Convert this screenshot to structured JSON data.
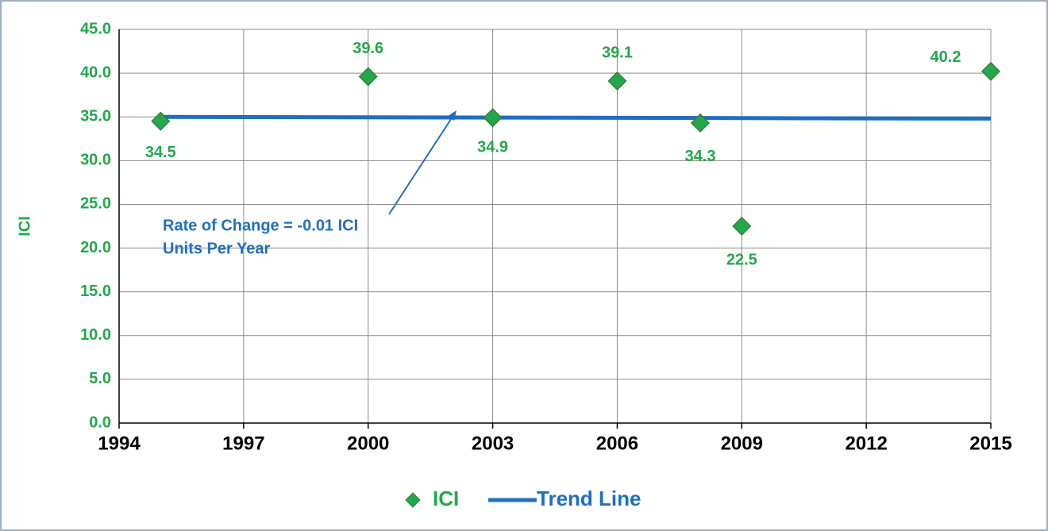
{
  "chart_data": {
    "type": "scatter",
    "y_label": "ICI",
    "annotation": [
      "Rate of Change = -0.01 ICI",
      "Units Per Year"
    ],
    "annotation_color": "#1f6fbf",
    "series": [
      {
        "name": "ICI",
        "color": "#22a84a",
        "marker": "diamond",
        "x": [
          1995,
          2000,
          2003,
          2006,
          2008,
          2009,
          2015
        ],
        "values": [
          34.5,
          39.6,
          34.9,
          39.1,
          34.3,
          22.5,
          40.2
        ]
      },
      {
        "name": "Trend Line",
        "color": "#1f6fbf",
        "marker": "line",
        "x": [
          1995,
          2015
        ],
        "values": [
          35.0,
          34.8
        ]
      }
    ],
    "xlim": [
      1994,
      2015
    ],
    "xticks": [
      1994,
      1997,
      2000,
      2003,
      2006,
      2009,
      2012,
      2015
    ],
    "ylim": [
      0,
      45
    ],
    "yticks": [
      {
        "value": 0,
        "label": "0.0"
      },
      {
        "value": 5,
        "label": "5.0"
      },
      {
        "value": 10,
        "label": "10.0"
      },
      {
        "value": 15,
        "label": "15.0"
      },
      {
        "value": 20,
        "label": "20.0"
      },
      {
        "value": 25,
        "label": "25.0"
      },
      {
        "value": 30,
        "label": "30.0"
      },
      {
        "value": 35,
        "label": "35.0"
      },
      {
        "value": 40,
        "label": "40.0"
      },
      {
        "value": 45,
        "label": "45.0"
      }
    ],
    "grid": true,
    "legend": "bottom"
  }
}
